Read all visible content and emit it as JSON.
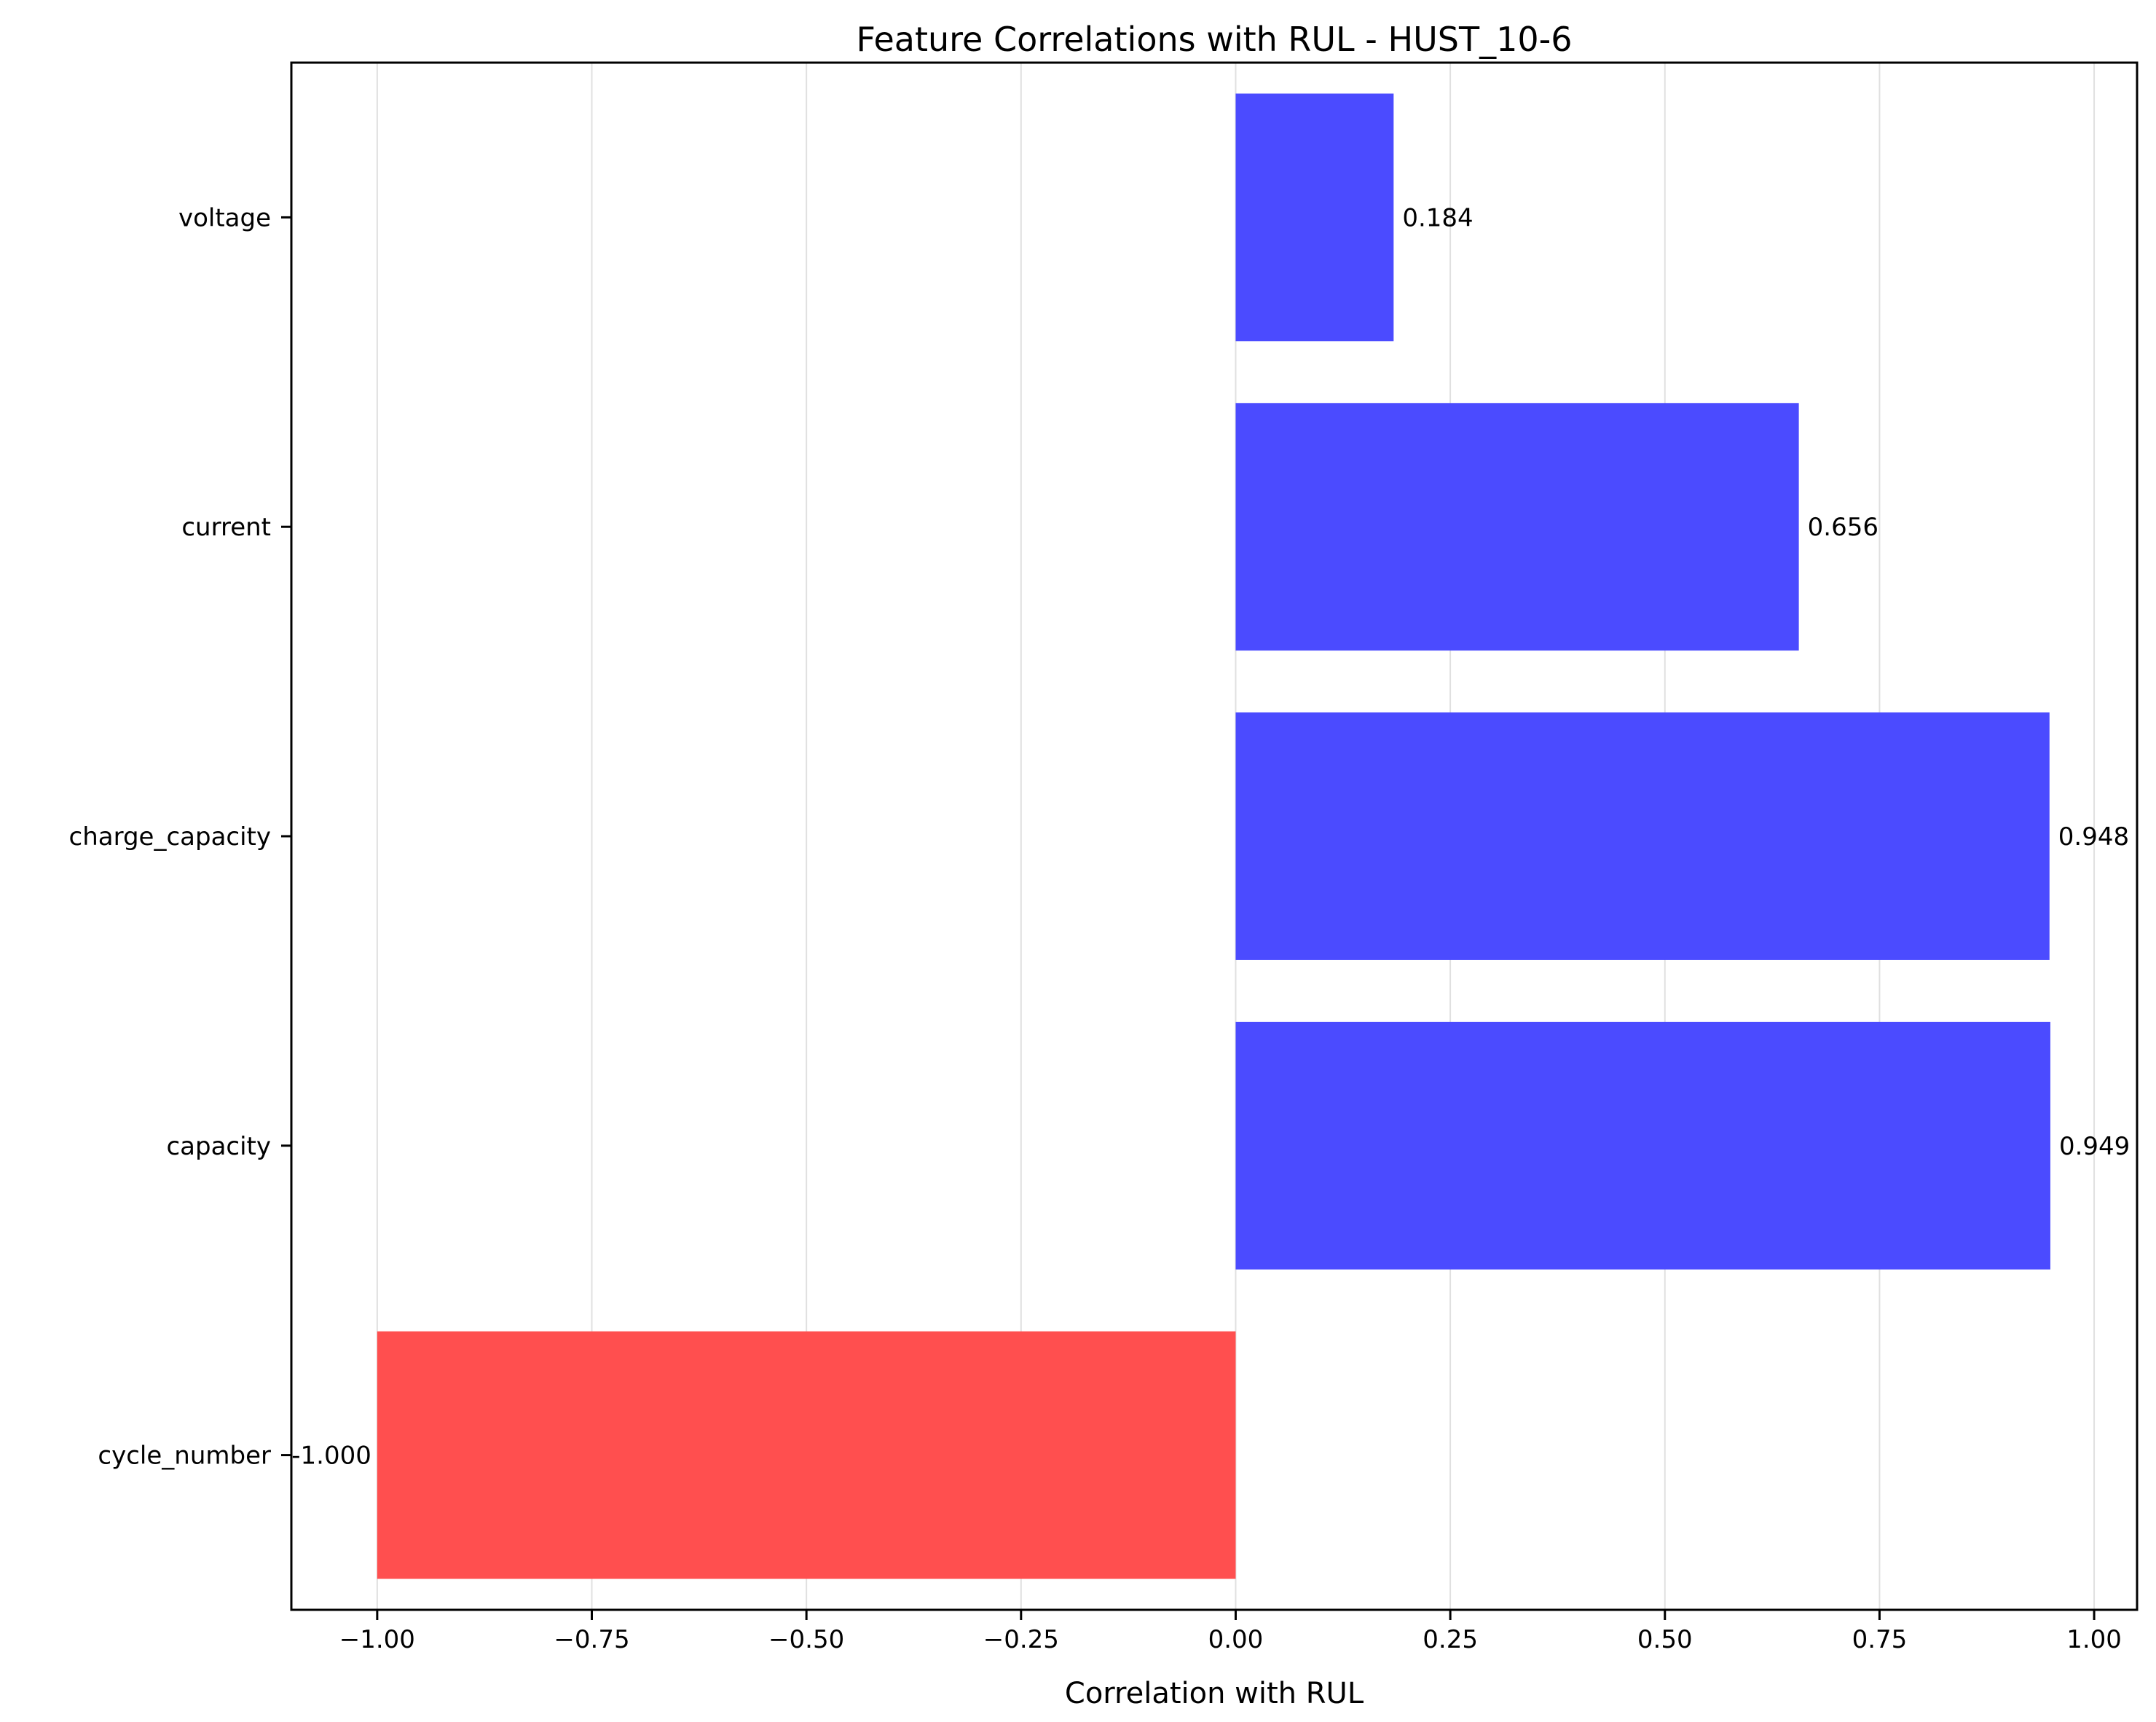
{
  "chart_data": {
    "type": "bar",
    "orientation": "horizontal",
    "title": "Feature Correlations with RUL - HUST_10-6",
    "xlabel": "Correlation with RUL",
    "ylabel": "",
    "categories": [
      "cycle_number",
      "capacity",
      "charge_capacity",
      "current",
      "voltage"
    ],
    "values": [
      -1.0,
      0.949,
      0.948,
      0.656,
      0.184
    ],
    "value_labels": [
      "-1.000",
      "0.949",
      "0.948",
      "0.656",
      "0.184"
    ],
    "xlim": [
      -1.1,
      1.05
    ],
    "xticks": [
      -1.0,
      -0.75,
      -0.5,
      -0.25,
      0.0,
      0.25,
      0.5,
      0.75,
      1.0
    ],
    "xtick_labels": [
      "−1.00",
      "−0.75",
      "−0.50",
      "−0.25",
      "0.00",
      "0.25",
      "0.50",
      "0.75",
      "1.00"
    ],
    "grid": "x-axis vertical lines",
    "legend": "none",
    "colors": {
      "positive": "#4b4bff",
      "negative": "#ff4f4f",
      "grid": "#e0e0e0",
      "axis": "#000000"
    }
  }
}
